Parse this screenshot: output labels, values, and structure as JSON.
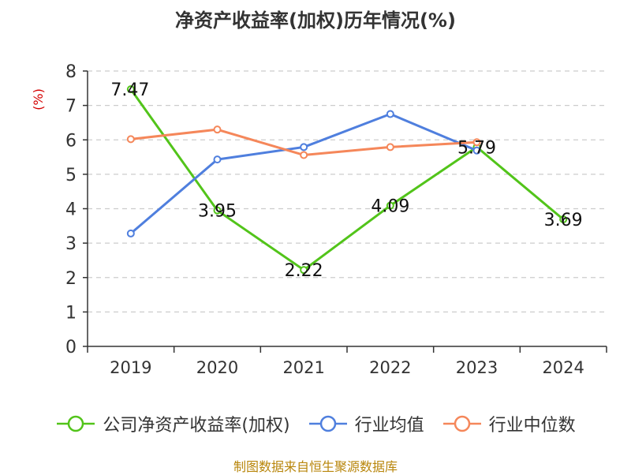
{
  "chart_data": {
    "type": "line",
    "title": "净资产收益率(加权)历年情况(%)",
    "ylabel": "(%)",
    "xlabel": "",
    "categories": [
      "2019",
      "2020",
      "2021",
      "2022",
      "2023",
      "2024"
    ],
    "ylim": [
      0,
      8
    ],
    "yticks": [
      0,
      1,
      2,
      3,
      4,
      5,
      6,
      7,
      8
    ],
    "grid": true,
    "legend_position": "bottom",
    "series": [
      {
        "name": "公司净资产收益率(加权)",
        "color": "#52c41a",
        "values": [
          7.47,
          3.95,
          2.22,
          4.09,
          5.79,
          3.69
        ],
        "labels": [
          "7.47",
          "3.95",
          "2.22",
          "4.09",
          "5.79",
          "3.69"
        ]
      },
      {
        "name": "行业均值",
        "color": "#4f7fde",
        "values": [
          3.28,
          5.43,
          5.79,
          6.75,
          5.69,
          null
        ]
      },
      {
        "name": "行业中位数",
        "color": "#f5875a",
        "values": [
          6.02,
          6.3,
          5.56,
          5.79,
          5.93,
          null
        ]
      }
    ]
  },
  "ylabel_color": "#d40000",
  "source_note": "制图数据来自恒生聚源数据库"
}
